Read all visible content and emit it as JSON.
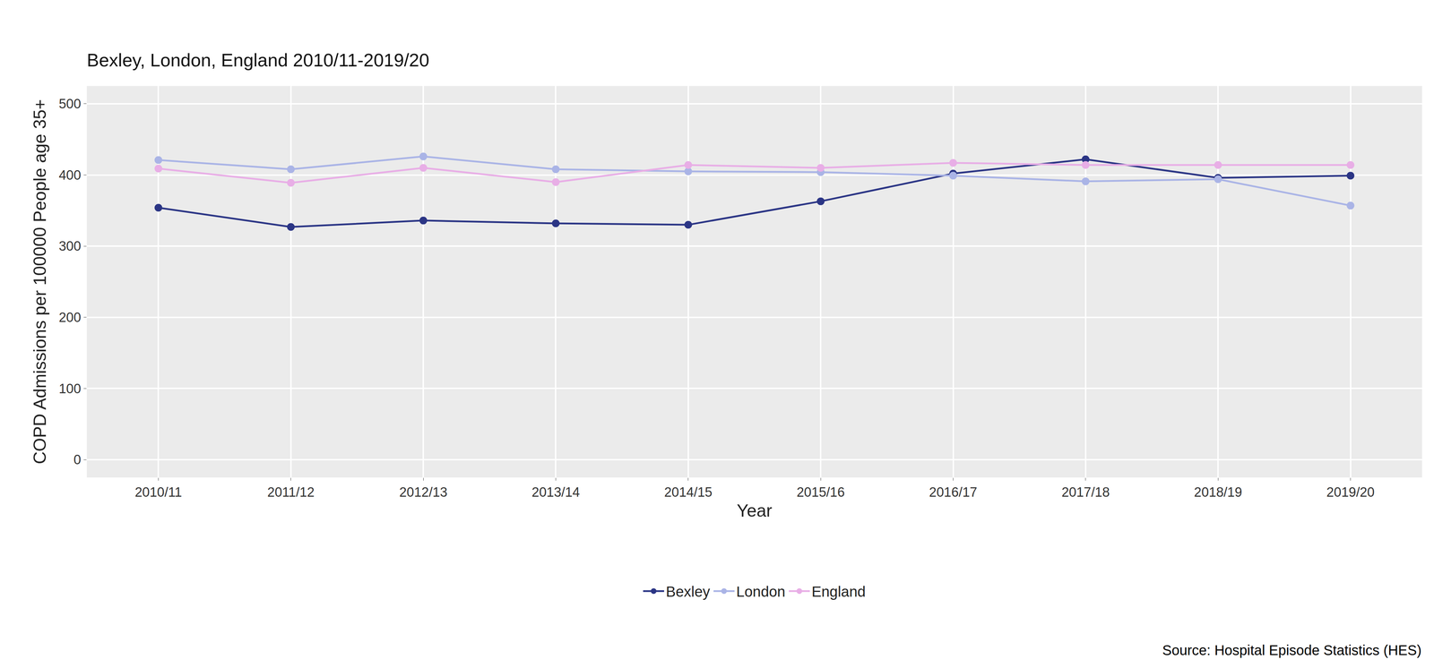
{
  "chart_data": {
    "type": "line",
    "title": "Bexley, London, England 2010/11-2019/20",
    "x_label": "Year",
    "y_label": "COPD Admissions per 100000 People age 35+",
    "annotations": [
      "Source: Hospital Episode Statistics (HES)"
    ],
    "categories": [
      "2010/11",
      "2011/12",
      "2012/13",
      "2013/14",
      "2014/15",
      "2015/16",
      "2016/17",
      "2017/18",
      "2018/19",
      "2019/20"
    ],
    "series": [
      {
        "name": "Bexley",
        "color": "#2b3585",
        "values": [
          354,
          327,
          336,
          332,
          330,
          363,
          402,
          422,
          396,
          399
        ]
      },
      {
        "name": "London",
        "color": "#aab4e6",
        "values": [
          421,
          408,
          426,
          408,
          405,
          404,
          399,
          391,
          394,
          357
        ]
      },
      {
        "name": "England",
        "color": "#e8aee6",
        "values": [
          409,
          389,
          410,
          390,
          414,
          410,
          417,
          414,
          414,
          414
        ]
      }
    ],
    "ylim": [
      -25,
      525
    ],
    "yticks": [
      0,
      100,
      200,
      300,
      400,
      500
    ],
    "grid": true,
    "legend": "bottom",
    "marker": "circle",
    "line_style": "solid"
  }
}
